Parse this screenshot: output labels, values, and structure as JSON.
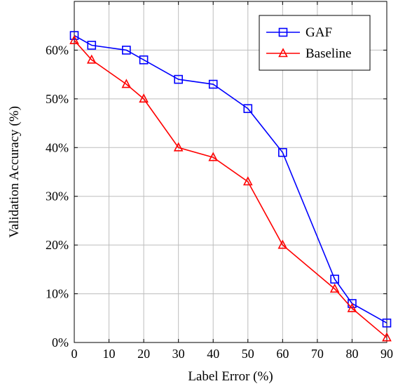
{
  "chart_data": {
    "type": "line",
    "title": "",
    "xlabel": "Label Error (%)",
    "ylabel": "Validation Accuracy (%)",
    "xlim": [
      0,
      90
    ],
    "ylim": [
      0,
      70
    ],
    "x_ticks": [
      0,
      10,
      20,
      30,
      40,
      50,
      60,
      70,
      80,
      90
    ],
    "x_tick_labels": [
      "0",
      "10",
      "20",
      "30",
      "40",
      "50",
      "60",
      "70",
      "80",
      "90"
    ],
    "y_ticks": [
      0,
      10,
      20,
      30,
      40,
      50,
      60
    ],
    "y_tick_labels": [
      "0%",
      "10%",
      "20%",
      "30%",
      "40%",
      "50%",
      "60%"
    ],
    "grid": true,
    "legend_position": "top-right",
    "series": [
      {
        "name": "GAF",
        "color": "#0000ff",
        "marker": "square",
        "x": [
          0,
          5,
          15,
          20,
          30,
          40,
          50,
          60,
          75,
          80,
          90
        ],
        "y": [
          63,
          61,
          60,
          58,
          54,
          53,
          48,
          39,
          13,
          8,
          4
        ]
      },
      {
        "name": "Baseline",
        "color": "#ff0000",
        "marker": "triangle",
        "x": [
          0,
          5,
          15,
          20,
          30,
          40,
          50,
          60,
          75,
          80,
          90
        ],
        "y": [
          62,
          58,
          53,
          50,
          40,
          38,
          33,
          20,
          11,
          7,
          1
        ]
      }
    ]
  }
}
